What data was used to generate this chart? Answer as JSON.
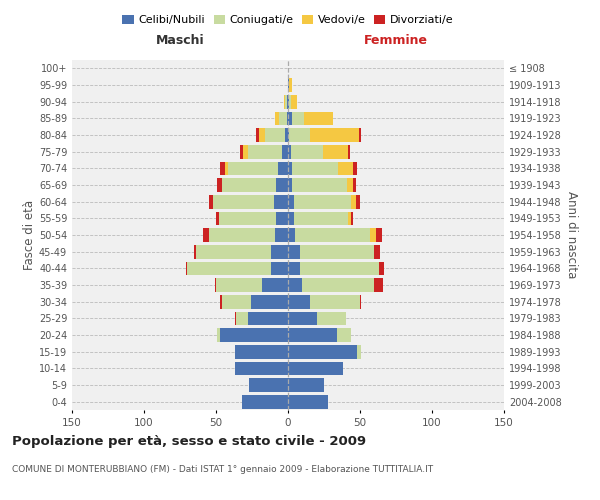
{
  "age_groups": [
    "0-4",
    "5-9",
    "10-14",
    "15-19",
    "20-24",
    "25-29",
    "30-34",
    "35-39",
    "40-44",
    "45-49",
    "50-54",
    "55-59",
    "60-64",
    "65-69",
    "70-74",
    "75-79",
    "80-84",
    "85-89",
    "90-94",
    "95-99",
    "100+"
  ],
  "birth_years": [
    "2004-2008",
    "1999-2003",
    "1994-1998",
    "1989-1993",
    "1984-1988",
    "1979-1983",
    "1974-1978",
    "1969-1973",
    "1964-1968",
    "1959-1963",
    "1954-1958",
    "1949-1953",
    "1944-1948",
    "1939-1943",
    "1934-1938",
    "1929-1933",
    "1924-1928",
    "1919-1923",
    "1914-1918",
    "1909-1913",
    "≤ 1908"
  ],
  "colors": {
    "celibe": "#4A72B0",
    "coniugato": "#C8DBA0",
    "vedovo": "#F5C842",
    "divorziato": "#CC2222"
  },
  "male": {
    "celibe": [
      32,
      27,
      37,
      37,
      47,
      28,
      26,
      18,
      12,
      12,
      9,
      8,
      10,
      8,
      7,
      4,
      2,
      1,
      1,
      0,
      0
    ],
    "coniugato": [
      0,
      0,
      0,
      0,
      2,
      8,
      20,
      32,
      58,
      52,
      46,
      40,
      42,
      38,
      35,
      24,
      14,
      5,
      1,
      0,
      0
    ],
    "vedovo": [
      0,
      0,
      0,
      0,
      0,
      0,
      0,
      0,
      0,
      0,
      0,
      0,
      0,
      0,
      2,
      3,
      4,
      3,
      1,
      0,
      0
    ],
    "divorziato": [
      0,
      0,
      0,
      0,
      0,
      1,
      1,
      1,
      1,
      1,
      4,
      2,
      3,
      3,
      3,
      2,
      2,
      0,
      0,
      0,
      0
    ]
  },
  "female": {
    "nubile": [
      28,
      25,
      38,
      48,
      34,
      20,
      15,
      10,
      8,
      8,
      5,
      4,
      4,
      3,
      3,
      2,
      1,
      3,
      1,
      1,
      0
    ],
    "coniugata": [
      0,
      0,
      0,
      3,
      10,
      20,
      35,
      50,
      55,
      52,
      52,
      38,
      40,
      38,
      32,
      22,
      14,
      8,
      1,
      0,
      0
    ],
    "vedova": [
      0,
      0,
      0,
      0,
      0,
      0,
      0,
      0,
      0,
      0,
      4,
      2,
      3,
      4,
      10,
      18,
      34,
      20,
      4,
      2,
      0
    ],
    "divorziata": [
      0,
      0,
      0,
      0,
      0,
      0,
      1,
      6,
      4,
      4,
      4,
      1,
      3,
      2,
      3,
      1,
      2,
      0,
      0,
      0,
      0
    ]
  },
  "xlim": 150,
  "title": "Popolazione per età, sesso e stato civile - 2009",
  "subtitle": "COMUNE DI MONTERUBBIANO (FM) - Dati ISTAT 1° gennaio 2009 - Elaborazione TUTTITALIA.IT",
  "xlabel_left": "Maschi",
  "xlabel_right": "Femmine",
  "ylabel_left": "Fasce di età",
  "ylabel_right": "Anni di nascita",
  "bg_color": "#f0f0f0"
}
